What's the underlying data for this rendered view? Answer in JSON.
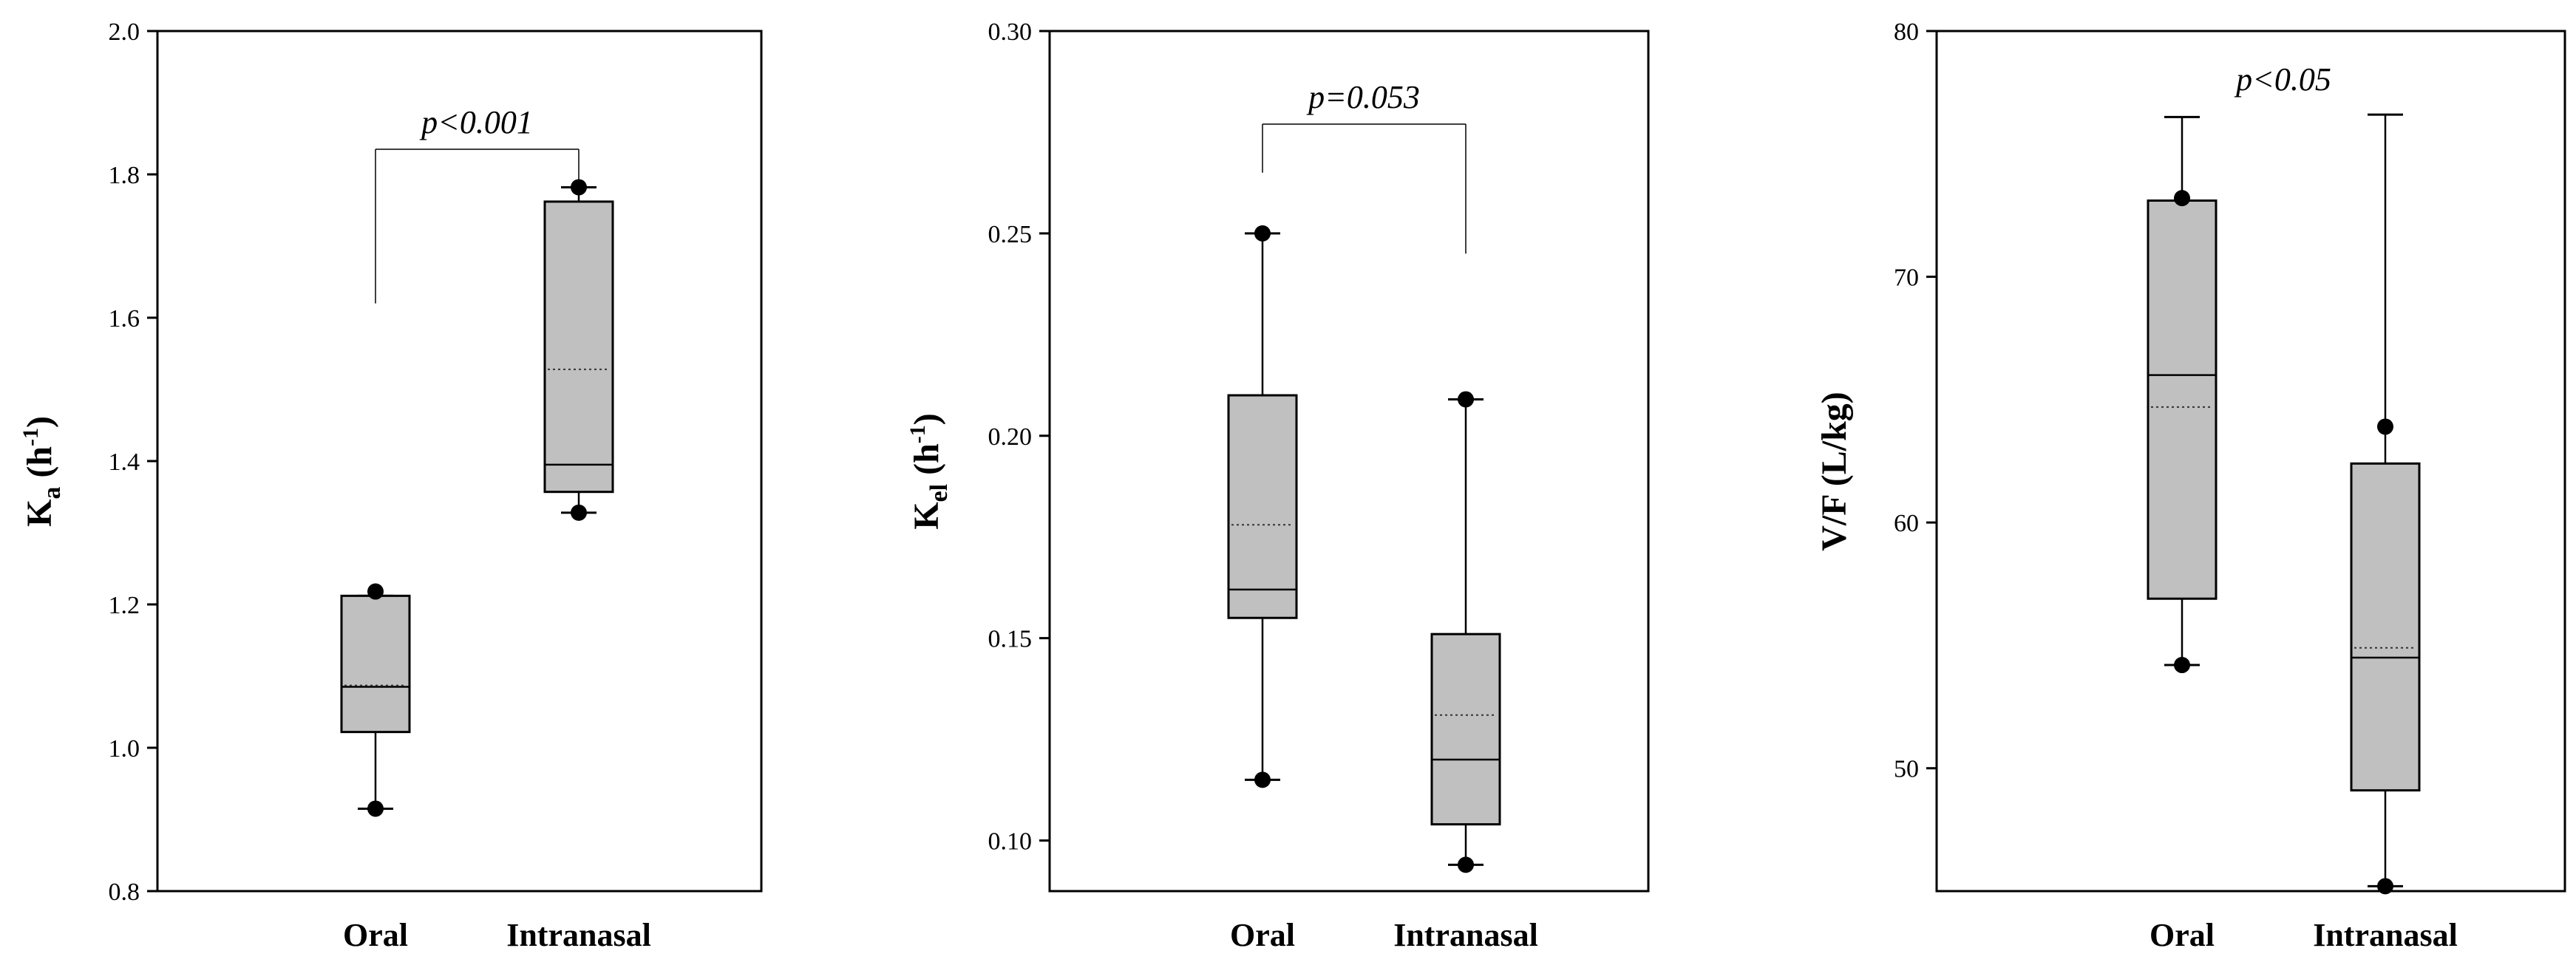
{
  "chart_data": [
    {
      "type": "box",
      "ylabel": {
        "base": "K",
        "sub": "a",
        "rest": " (h",
        "sup": "-1",
        "close": ")"
      },
      "ylim": [
        0.8,
        2.0
      ],
      "yticks": [
        "0.8",
        "1.0",
        "1.2",
        "1.4",
        "1.6",
        "1.8",
        "2.0"
      ],
      "categories": [
        "Oral",
        "Intranasal"
      ],
      "boxes": [
        {
          "whisker_low": 0.915,
          "q1": 1.022,
          "median": 1.085,
          "mean": 1.087,
          "q3": 1.212,
          "whisker_high": 1.212,
          "outliers": [
            0.915,
            1.218
          ]
        },
        {
          "whisker_low": 1.328,
          "q1": 1.357,
          "median": 1.395,
          "mean": 1.528,
          "q3": 1.762,
          "whisker_high": 1.782,
          "outliers": [
            1.328,
            1.782
          ]
        }
      ],
      "significance": {
        "text": "p<0.001",
        "bar_y": 1.835,
        "left_drop_to": 1.62,
        "right_drop_to": 1.785
      }
    },
    {
      "type": "box",
      "ylabel": {
        "base": "K",
        "sub": "el",
        "rest": " (h",
        "sup": "-1",
        "close": ")"
      },
      "ylim": [
        0.0875,
        0.3
      ],
      "yticks": [
        "0.10",
        "0.15",
        "0.20",
        "0.25",
        "0.30"
      ],
      "categories": [
        "Oral",
        "Intranasal"
      ],
      "boxes": [
        {
          "whisker_low": 0.115,
          "q1": 0.155,
          "median": 0.162,
          "mean": 0.178,
          "q3": 0.21,
          "whisker_high": 0.25,
          "outliers": [
            0.115,
            0.25
          ]
        },
        {
          "whisker_low": 0.094,
          "q1": 0.104,
          "median": 0.12,
          "mean": 0.131,
          "q3": 0.151,
          "whisker_high": 0.209,
          "outliers": [
            0.094,
            0.209
          ]
        }
      ],
      "significance": {
        "text": "p=0.053",
        "bar_y": 0.277,
        "left_drop_to": 0.265,
        "right_drop_to": 0.245
      }
    },
    {
      "type": "box",
      "ylabel": {
        "base": "V/F (L/kg)"
      },
      "ylim": [
        45,
        80
      ],
      "yticks": [
        "50",
        "60",
        "70",
        "80"
      ],
      "categories": [
        "Oral",
        "Intranasal"
      ],
      "boxes": [
        {
          "whisker_low": 54.2,
          "q1": 56.9,
          "median": 66.0,
          "mean": 64.7,
          "q3": 73.1,
          "whisker_high": 76.5,
          "outliers": [
            54.2,
            73.2
          ]
        },
        {
          "whisker_low": 45.2,
          "q1": 49.1,
          "median": 54.5,
          "mean": 54.9,
          "q3": 62.4,
          "whisker_high": 76.6,
          "outliers": [
            45.2,
            63.9
          ]
        }
      ],
      "significance": {
        "text": "p<0.05",
        "bar_y": null,
        "left_drop_to": 74.5,
        "right_drop_to": 71.0
      }
    }
  ]
}
